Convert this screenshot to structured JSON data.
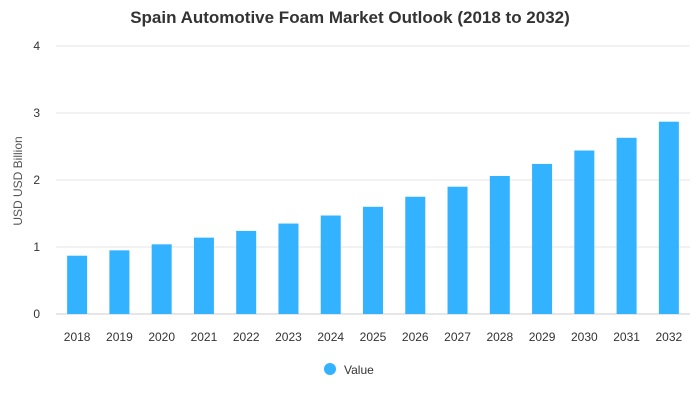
{
  "chart_data": {
    "type": "bar",
    "title": "Spain Automotive Foam Market Outlook (2018 to 2032)",
    "xlabel": "",
    "ylabel": "USD USD Billion",
    "ylim": [
      0,
      4
    ],
    "yticks": [
      0,
      1,
      2,
      3,
      4
    ],
    "grid": true,
    "legend_position": "bottom",
    "categories": [
      "2018",
      "2019",
      "2020",
      "2021",
      "2022",
      "2023",
      "2024",
      "2025",
      "2026",
      "2027",
      "2028",
      "2029",
      "2030",
      "2031",
      "2032"
    ],
    "series": [
      {
        "name": "Value",
        "color": "#33b3ff",
        "values": [
          0.87,
          0.95,
          1.04,
          1.14,
          1.24,
          1.35,
          1.47,
          1.6,
          1.75,
          1.9,
          2.06,
          2.24,
          2.44,
          2.63,
          2.87
        ]
      }
    ]
  }
}
